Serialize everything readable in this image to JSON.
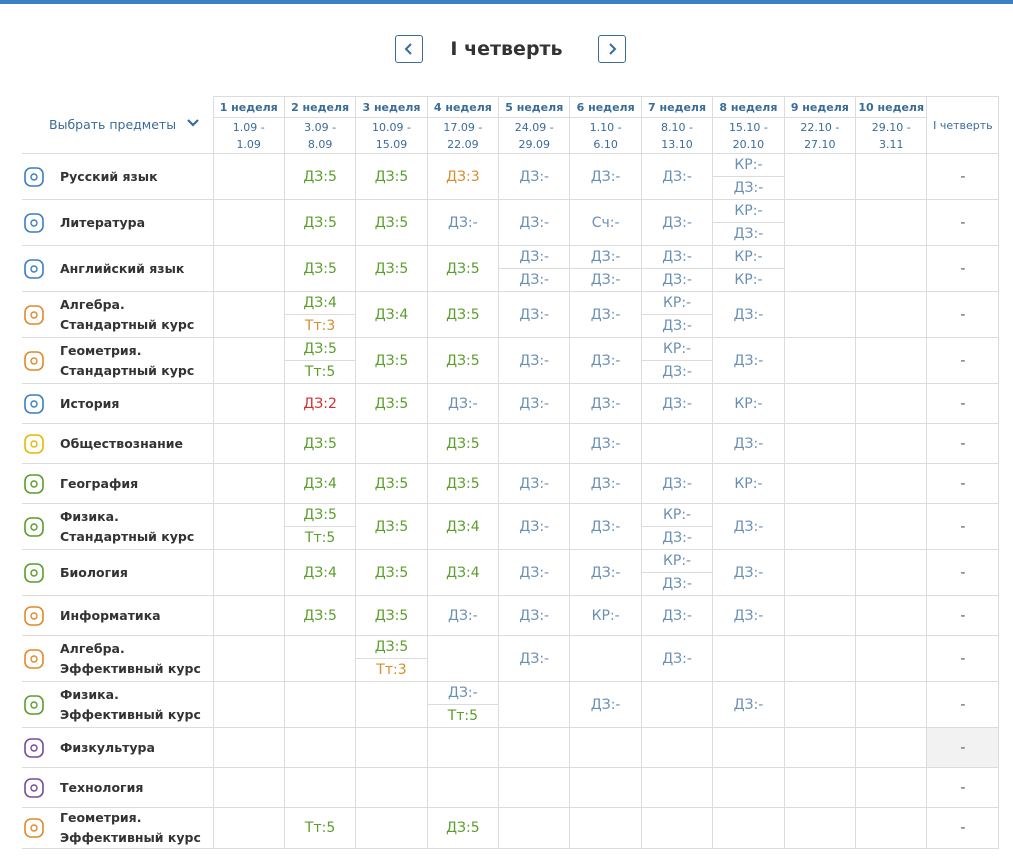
{
  "header": {
    "title": "I четверть"
  },
  "table": {
    "select_label": "Выбрать предметы",
    "total_header": "I четверть",
    "grade_colors": {
      "5": "#5a9e2b",
      "4": "#5a9e2b",
      "3": "#d88c2a",
      "2": "#d32f2f",
      "-": "#6a8fb5"
    },
    "weeks": [
      {
        "name": "1 неделя",
        "dates": [
          "1.09 -",
          "1.09"
        ]
      },
      {
        "name": "2 неделя",
        "dates": [
          "3.09 -",
          "8.09"
        ]
      },
      {
        "name": "3 неделя",
        "dates": [
          "10.09 -",
          "15.09"
        ]
      },
      {
        "name": "4 неделя",
        "dates": [
          "17.09 -",
          "22.09"
        ]
      },
      {
        "name": "5 неделя",
        "dates": [
          "24.09 -",
          "29.09"
        ]
      },
      {
        "name": "6 неделя",
        "dates": [
          "1.10 -",
          "6.10"
        ]
      },
      {
        "name": "7 неделя",
        "dates": [
          "8.10 -",
          "13.10"
        ]
      },
      {
        "name": "8 неделя",
        "dates": [
          "15.10 -",
          "20.10"
        ]
      },
      {
        "name": "9 неделя",
        "dates": [
          "22.10 -",
          "27.10"
        ]
      },
      {
        "name": "10 неделя",
        "dates": [
          "29.10 -",
          "3.11"
        ]
      }
    ],
    "subjects": [
      {
        "name": "Русский язык",
        "icon_color": "#3a7fc1",
        "cells": [
          [],
          [
            "ДЗ:5"
          ],
          [
            "ДЗ:5"
          ],
          [
            "ДЗ:3"
          ],
          [
            "ДЗ:-"
          ],
          [
            "ДЗ:-"
          ],
          [
            "ДЗ:-"
          ],
          [
            "КР:-",
            "ДЗ:-"
          ],
          [],
          []
        ],
        "total": "-"
      },
      {
        "name": "Литература",
        "icon_color": "#3a7fc1",
        "cells": [
          [],
          [
            "ДЗ:5"
          ],
          [
            "ДЗ:5"
          ],
          [
            "ДЗ:-"
          ],
          [
            "ДЗ:-"
          ],
          [
            "Сч:-"
          ],
          [
            "ДЗ:-"
          ],
          [
            "КР:-",
            "ДЗ:-"
          ],
          [],
          []
        ],
        "total": "-"
      },
      {
        "name": "Английский язык",
        "icon_color": "#3a7fc1",
        "cells": [
          [],
          [
            "ДЗ:5"
          ],
          [
            "ДЗ:5"
          ],
          [
            "ДЗ:5"
          ],
          [
            "ДЗ:-",
            "ДЗ:-"
          ],
          [
            "ДЗ:-",
            "ДЗ:-"
          ],
          [
            "ДЗ:-",
            "ДЗ:-"
          ],
          [
            "КР:-",
            "КР:-"
          ],
          [],
          []
        ],
        "total": "-"
      },
      {
        "name": "Алгебра. Стандартный курс",
        "icon_color": "#e08a2a",
        "cells": [
          [],
          [
            "ДЗ:4",
            "Тт:3"
          ],
          [
            "ДЗ:4"
          ],
          [
            "ДЗ:5"
          ],
          [
            "ДЗ:-"
          ],
          [
            "ДЗ:-"
          ],
          [
            "КР:-",
            "ДЗ:-"
          ],
          [
            "ДЗ:-"
          ],
          [],
          []
        ],
        "total": "-"
      },
      {
        "name": "Геометрия. Стандартный курс",
        "icon_color": "#e08a2a",
        "cells": [
          [],
          [
            "ДЗ:5",
            "Тт:5"
          ],
          [
            "ДЗ:5"
          ],
          [
            "ДЗ:5"
          ],
          [
            "ДЗ:-"
          ],
          [
            "ДЗ:-"
          ],
          [
            "КР:-",
            "ДЗ:-"
          ],
          [
            "ДЗ:-"
          ],
          [],
          []
        ],
        "total": "-"
      },
      {
        "name": "История",
        "icon_color": "#3a7fc1",
        "cells": [
          [],
          [
            "ДЗ:2"
          ],
          [
            "ДЗ:5"
          ],
          [
            "ДЗ:-"
          ],
          [
            "ДЗ:-"
          ],
          [
            "ДЗ:-"
          ],
          [
            "ДЗ:-"
          ],
          [
            "КР:-"
          ],
          [],
          []
        ],
        "total": "-"
      },
      {
        "name": "Обществознание",
        "icon_color": "#e6b800",
        "cells": [
          [],
          [
            "ДЗ:5"
          ],
          [],
          [
            "ДЗ:5"
          ],
          [],
          [
            "ДЗ:-"
          ],
          [],
          [
            "ДЗ:-"
          ],
          [],
          []
        ],
        "total": "-"
      },
      {
        "name": "География",
        "icon_color": "#5a9e2b",
        "cells": [
          [],
          [
            "ДЗ:4"
          ],
          [
            "ДЗ:5"
          ],
          [
            "ДЗ:5"
          ],
          [
            "ДЗ:-"
          ],
          [
            "ДЗ:-"
          ],
          [
            "ДЗ:-"
          ],
          [
            "КР:-"
          ],
          [],
          []
        ],
        "total": "-"
      },
      {
        "name": "Физика. Стандартный курс",
        "icon_color": "#5a9e2b",
        "cells": [
          [],
          [
            "ДЗ:5",
            "Тт:5"
          ],
          [
            "ДЗ:5"
          ],
          [
            "ДЗ:4"
          ],
          [
            "ДЗ:-"
          ],
          [
            "ДЗ:-"
          ],
          [
            "КР:-",
            "ДЗ:-"
          ],
          [
            "ДЗ:-"
          ],
          [],
          []
        ],
        "total": "-"
      },
      {
        "name": "Биология",
        "icon_color": "#5a9e2b",
        "cells": [
          [],
          [
            "ДЗ:4"
          ],
          [
            "ДЗ:5"
          ],
          [
            "ДЗ:4"
          ],
          [
            "ДЗ:-"
          ],
          [
            "ДЗ:-"
          ],
          [
            "КР:-",
            "ДЗ:-"
          ],
          [
            "ДЗ:-"
          ],
          [],
          []
        ],
        "total": "-"
      },
      {
        "name": "Информатика",
        "icon_color": "#e08a2a",
        "cells": [
          [],
          [
            "ДЗ:5"
          ],
          [
            "ДЗ:5"
          ],
          [
            "ДЗ:-"
          ],
          [
            "ДЗ:-"
          ],
          [
            "КР:-"
          ],
          [
            "ДЗ:-"
          ],
          [
            "ДЗ:-"
          ],
          [],
          []
        ],
        "total": "-"
      },
      {
        "name": "Алгебра. Эффективный курс",
        "icon_color": "#e08a2a",
        "cells": [
          [],
          [],
          [
            "ДЗ:5",
            "Тт:3"
          ],
          [],
          [
            "ДЗ:-"
          ],
          [],
          [
            "ДЗ:-"
          ],
          [],
          [],
          []
        ],
        "total": "-"
      },
      {
        "name": "Физика. Эффективный курс",
        "icon_color": "#5a9e2b",
        "cells": [
          [],
          [],
          [],
          [
            "ДЗ:-",
            "Тт:5"
          ],
          [],
          [
            "ДЗ:-"
          ],
          [],
          [
            "ДЗ:-"
          ],
          [],
          []
        ],
        "total": "-"
      },
      {
        "name": "Физкультура",
        "icon_color": "#7a4a9e",
        "cells": [
          [],
          [],
          [],
          [],
          [],
          [],
          [],
          [],
          [],
          []
        ],
        "total": "-"
      },
      {
        "name": "Технология",
        "icon_color": "#7a4a9e",
        "cells": [
          [],
          [],
          [],
          [],
          [],
          [],
          [],
          [],
          [],
          []
        ],
        "total": "-"
      },
      {
        "name": "Геометрия. Эффективный курс",
        "icon_color": "#e08a2a",
        "cells": [
          [],
          [
            "Тт:5"
          ],
          [],
          [
            "ДЗ:5"
          ],
          [],
          [],
          [],
          [],
          [],
          []
        ],
        "total": "-"
      }
    ]
  }
}
